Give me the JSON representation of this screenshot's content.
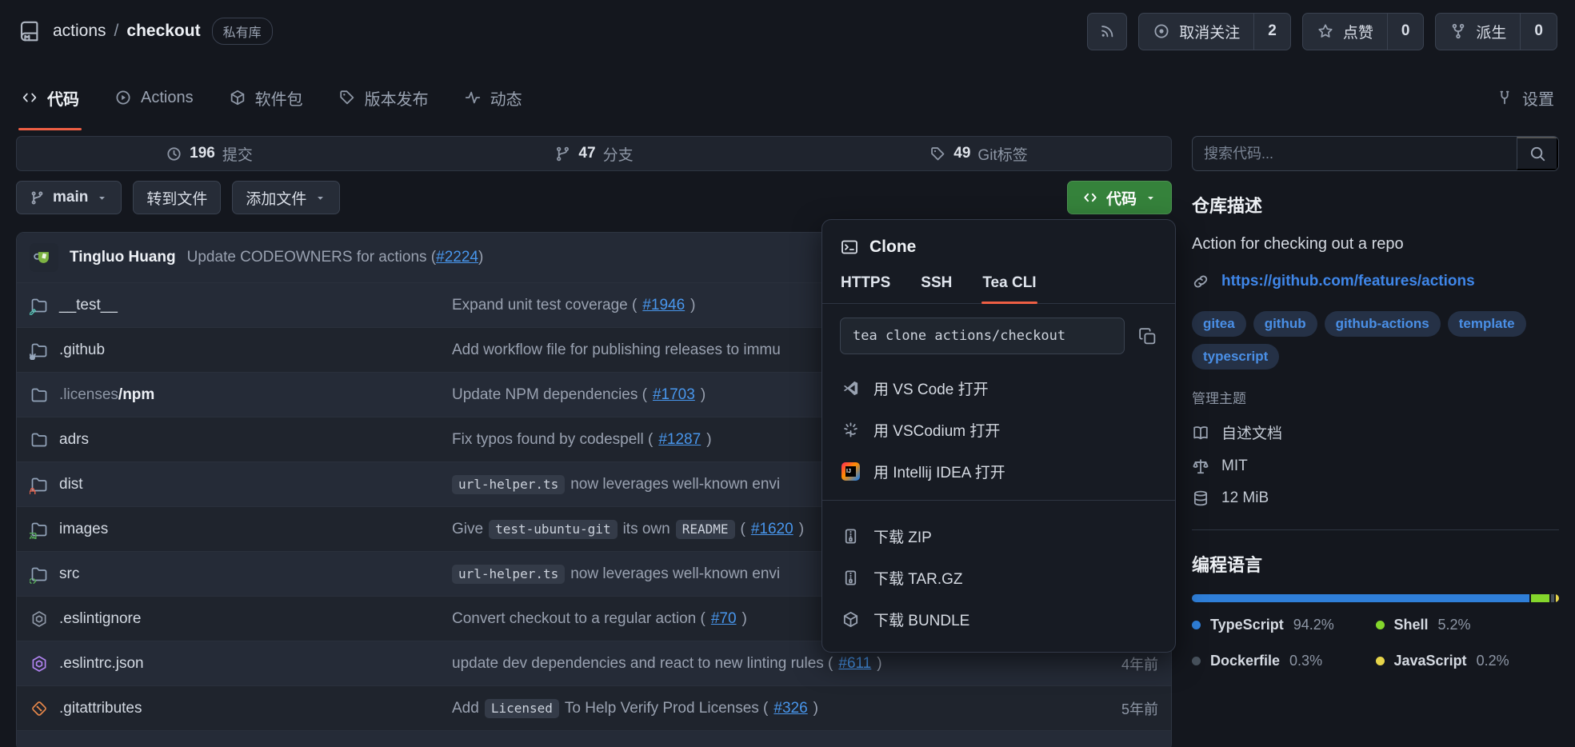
{
  "colors": {
    "accent": "#ee5f44",
    "green_button": "#35823b"
  },
  "header": {
    "repo": {
      "owner": "actions",
      "separator": "/",
      "name": "checkout",
      "badge": "私有库"
    },
    "buttons": {
      "rss": {
        "icon": "rss-icon"
      },
      "watch": {
        "icon": "watch-icon",
        "label": "取消关注",
        "count": "2"
      },
      "star": {
        "icon": "star-icon",
        "label": "点赞",
        "count": "0"
      },
      "fork": {
        "icon": "fork-icon",
        "label": "派生",
        "count": "0"
      }
    }
  },
  "nav": {
    "tabs": [
      {
        "id": "code",
        "icon": "code-icon",
        "label": "代码",
        "active": true
      },
      {
        "id": "actions",
        "icon": "play-icon",
        "label": "Actions",
        "active": false
      },
      {
        "id": "packages",
        "icon": "package-icon",
        "label": "软件包",
        "active": false
      },
      {
        "id": "releases",
        "icon": "tag-icon",
        "label": "版本发布",
        "active": false
      },
      {
        "id": "activity",
        "icon": "pulse-icon",
        "label": "动态",
        "active": false
      }
    ],
    "settings": {
      "icon": "wrench-icon",
      "label": "设置"
    }
  },
  "stats": [
    {
      "icon": "history-icon",
      "count": "196",
      "label": "提交"
    },
    {
      "icon": "branch-icon",
      "count": "47",
      "label": "分支"
    },
    {
      "icon": "tag-icon",
      "count": "49",
      "label": "Git标签"
    }
  ],
  "toolbar": {
    "branch": "main",
    "goto_file": "转到文件",
    "add_file": "添加文件",
    "code_button": "代码"
  },
  "commit_header": {
    "author": "Tingluo Huang",
    "message": [
      {
        "t": "text",
        "v": "Update CODEOWNERS for actions ("
      },
      {
        "t": "link",
        "v": "#2224"
      },
      {
        "t": "text",
        "v": ")"
      }
    ]
  },
  "files": [
    {
      "icon": "folder-test",
      "name": "__test__",
      "message": [
        {
          "t": "text",
          "v": "Expand unit test coverage ("
        },
        {
          "t": "link",
          "v": "#1946"
        },
        {
          "t": "text",
          "v": ")"
        }
      ],
      "date": ""
    },
    {
      "icon": "folder-github",
      "name": ".github",
      "message": [
        {
          "t": "text",
          "v": "Add workflow file for publishing releases to immu"
        }
      ],
      "date": ""
    },
    {
      "icon": "folder",
      "name_dim": ".licenses",
      "name": "/npm",
      "message": [
        {
          "t": "text",
          "v": "Update NPM dependencies ("
        },
        {
          "t": "link",
          "v": "#1703"
        },
        {
          "t": "text",
          "v": ")"
        }
      ],
      "date": ""
    },
    {
      "icon": "folder",
      "name": "adrs",
      "message": [
        {
          "t": "text",
          "v": "Fix typos found by codespell ("
        },
        {
          "t": "link",
          "v": "#1287"
        },
        {
          "t": "text",
          "v": ")"
        }
      ],
      "date": ""
    },
    {
      "icon": "folder-lock",
      "name": "dist",
      "message": [
        {
          "t": "code",
          "v": "url-helper.ts"
        },
        {
          "t": "text",
          "v": " now leverages well-known envi"
        }
      ],
      "date": ""
    },
    {
      "icon": "folder-image",
      "name": "images",
      "message": [
        {
          "t": "text",
          "v": "Give "
        },
        {
          "t": "code",
          "v": "test-ubuntu-git"
        },
        {
          "t": "text",
          "v": " its own "
        },
        {
          "t": "code",
          "v": "README"
        },
        {
          "t": "text",
          "v": " ("
        },
        {
          "t": "link",
          "v": "#1620"
        },
        {
          "t": "text",
          "v": ")"
        }
      ],
      "date": ""
    },
    {
      "icon": "folder-code",
      "name": "src",
      "message": [
        {
          "t": "code",
          "v": "url-helper.ts"
        },
        {
          "t": "text",
          "v": " now leverages well-known envi"
        }
      ],
      "date": ""
    },
    {
      "icon": "eslint-gray",
      "name": ".eslintignore",
      "message": [
        {
          "t": "text",
          "v": "Convert checkout to a regular action ("
        },
        {
          "t": "link",
          "v": "#70"
        },
        {
          "t": "text",
          "v": ")"
        }
      ],
      "date": ""
    },
    {
      "icon": "eslint-purple",
      "name": ".eslintrc.json",
      "message": [
        {
          "t": "text",
          "v": "update dev dependencies and react to new linting rules ("
        },
        {
          "t": "link",
          "v": "#611"
        },
        {
          "t": "text",
          "v": ")"
        }
      ],
      "date": "4年前"
    },
    {
      "icon": "git-orange",
      "name": ".gitattributes",
      "message": [
        {
          "t": "text",
          "v": "Add "
        },
        {
          "t": "code",
          "v": "Licensed"
        },
        {
          "t": "text",
          "v": " To Help Verify Prod Licenses ("
        },
        {
          "t": "link",
          "v": "#326"
        },
        {
          "t": "text",
          "v": ")"
        }
      ],
      "date": "5年前"
    }
  ],
  "clone_panel": {
    "icon": "terminal-icon",
    "title": "Clone",
    "tabs": [
      {
        "label": "HTTPS",
        "active": false
      },
      {
        "label": "SSH",
        "active": false
      },
      {
        "label": "Tea CLI",
        "active": true
      }
    ],
    "command": "tea clone actions/checkout",
    "copy_icon": "copy-icon",
    "open_items": [
      {
        "icon": "vscode-icon",
        "label": "用 VS Code 打开"
      },
      {
        "icon": "vscodium-icon",
        "label": "用 VSCodium 打开"
      },
      {
        "icon": "intellij-icon",
        "label": "用 Intellij IDEA 打开"
      }
    ],
    "download_items": [
      {
        "icon": "zip-icon",
        "label": "下载 ZIP"
      },
      {
        "icon": "zip-icon",
        "label": "下载 TAR.GZ"
      },
      {
        "icon": "cube-icon",
        "label": "下载 BUNDLE"
      }
    ]
  },
  "sidebar": {
    "search_placeholder": "搜索代码...",
    "description_heading": "仓库描述",
    "description": "Action for checking out a repo",
    "website": "https://github.com/features/actions",
    "topics": [
      "gitea",
      "github",
      "github-actions",
      "template",
      "typescript"
    ],
    "manage_topics": "管理主题",
    "meta": [
      {
        "icon": "book-icon",
        "label": "自述文档"
      },
      {
        "icon": "law-icon",
        "label": "MIT"
      },
      {
        "icon": "database-icon",
        "label": "12 MiB"
      }
    ],
    "languages_heading": "编程语言",
    "languages": [
      {
        "name": "TypeScript",
        "pct": "94.2%",
        "value": 94.2,
        "color": "#2f7fd9"
      },
      {
        "name": "Shell",
        "pct": "5.2%",
        "value": 5.2,
        "color": "#84d62c"
      },
      {
        "name": "Dockerfile",
        "pct": "0.3%",
        "value": 0.3,
        "color": "#47515c"
      },
      {
        "name": "JavaScript",
        "pct": "0.2%",
        "value": 0.2,
        "color": "#e6d44a"
      }
    ]
  }
}
